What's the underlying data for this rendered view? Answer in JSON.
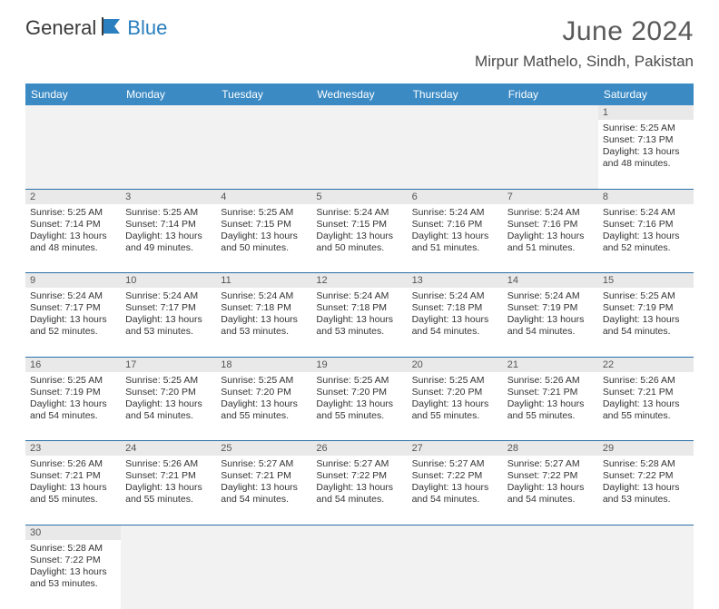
{
  "brand": {
    "part1": "General",
    "part2": "Blue"
  },
  "title": "June 2024",
  "location": "Mirpur Mathelo, Sindh, Pakistan",
  "colors": {
    "header_bg": "#3b8ac4",
    "header_text": "#ffffff",
    "rule": "#2a6fa8",
    "daynum_bg": "#e9e9e9",
    "brand_accent": "#2a7fbf"
  },
  "day_headers": [
    "Sunday",
    "Monday",
    "Tuesday",
    "Wednesday",
    "Thursday",
    "Friday",
    "Saturday"
  ],
  "weeks": [
    [
      null,
      null,
      null,
      null,
      null,
      null,
      {
        "n": "1",
        "sr": "Sunrise: 5:25 AM",
        "ss": "Sunset: 7:13 PM",
        "d1": "Daylight: 13 hours",
        "d2": "and 48 minutes."
      }
    ],
    [
      {
        "n": "2",
        "sr": "Sunrise: 5:25 AM",
        "ss": "Sunset: 7:14 PM",
        "d1": "Daylight: 13 hours",
        "d2": "and 48 minutes."
      },
      {
        "n": "3",
        "sr": "Sunrise: 5:25 AM",
        "ss": "Sunset: 7:14 PM",
        "d1": "Daylight: 13 hours",
        "d2": "and 49 minutes."
      },
      {
        "n": "4",
        "sr": "Sunrise: 5:25 AM",
        "ss": "Sunset: 7:15 PM",
        "d1": "Daylight: 13 hours",
        "d2": "and 50 minutes."
      },
      {
        "n": "5",
        "sr": "Sunrise: 5:24 AM",
        "ss": "Sunset: 7:15 PM",
        "d1": "Daylight: 13 hours",
        "d2": "and 50 minutes."
      },
      {
        "n": "6",
        "sr": "Sunrise: 5:24 AM",
        "ss": "Sunset: 7:16 PM",
        "d1": "Daylight: 13 hours",
        "d2": "and 51 minutes."
      },
      {
        "n": "7",
        "sr": "Sunrise: 5:24 AM",
        "ss": "Sunset: 7:16 PM",
        "d1": "Daylight: 13 hours",
        "d2": "and 51 minutes."
      },
      {
        "n": "8",
        "sr": "Sunrise: 5:24 AM",
        "ss": "Sunset: 7:16 PM",
        "d1": "Daylight: 13 hours",
        "d2": "and 52 minutes."
      }
    ],
    [
      {
        "n": "9",
        "sr": "Sunrise: 5:24 AM",
        "ss": "Sunset: 7:17 PM",
        "d1": "Daylight: 13 hours",
        "d2": "and 52 minutes."
      },
      {
        "n": "10",
        "sr": "Sunrise: 5:24 AM",
        "ss": "Sunset: 7:17 PM",
        "d1": "Daylight: 13 hours",
        "d2": "and 53 minutes."
      },
      {
        "n": "11",
        "sr": "Sunrise: 5:24 AM",
        "ss": "Sunset: 7:18 PM",
        "d1": "Daylight: 13 hours",
        "d2": "and 53 minutes."
      },
      {
        "n": "12",
        "sr": "Sunrise: 5:24 AM",
        "ss": "Sunset: 7:18 PM",
        "d1": "Daylight: 13 hours",
        "d2": "and 53 minutes."
      },
      {
        "n": "13",
        "sr": "Sunrise: 5:24 AM",
        "ss": "Sunset: 7:18 PM",
        "d1": "Daylight: 13 hours",
        "d2": "and 54 minutes."
      },
      {
        "n": "14",
        "sr": "Sunrise: 5:24 AM",
        "ss": "Sunset: 7:19 PM",
        "d1": "Daylight: 13 hours",
        "d2": "and 54 minutes."
      },
      {
        "n": "15",
        "sr": "Sunrise: 5:25 AM",
        "ss": "Sunset: 7:19 PM",
        "d1": "Daylight: 13 hours",
        "d2": "and 54 minutes."
      }
    ],
    [
      {
        "n": "16",
        "sr": "Sunrise: 5:25 AM",
        "ss": "Sunset: 7:19 PM",
        "d1": "Daylight: 13 hours",
        "d2": "and 54 minutes."
      },
      {
        "n": "17",
        "sr": "Sunrise: 5:25 AM",
        "ss": "Sunset: 7:20 PM",
        "d1": "Daylight: 13 hours",
        "d2": "and 54 minutes."
      },
      {
        "n": "18",
        "sr": "Sunrise: 5:25 AM",
        "ss": "Sunset: 7:20 PM",
        "d1": "Daylight: 13 hours",
        "d2": "and 55 minutes."
      },
      {
        "n": "19",
        "sr": "Sunrise: 5:25 AM",
        "ss": "Sunset: 7:20 PM",
        "d1": "Daylight: 13 hours",
        "d2": "and 55 minutes."
      },
      {
        "n": "20",
        "sr": "Sunrise: 5:25 AM",
        "ss": "Sunset: 7:20 PM",
        "d1": "Daylight: 13 hours",
        "d2": "and 55 minutes."
      },
      {
        "n": "21",
        "sr": "Sunrise: 5:26 AM",
        "ss": "Sunset: 7:21 PM",
        "d1": "Daylight: 13 hours",
        "d2": "and 55 minutes."
      },
      {
        "n": "22",
        "sr": "Sunrise: 5:26 AM",
        "ss": "Sunset: 7:21 PM",
        "d1": "Daylight: 13 hours",
        "d2": "and 55 minutes."
      }
    ],
    [
      {
        "n": "23",
        "sr": "Sunrise: 5:26 AM",
        "ss": "Sunset: 7:21 PM",
        "d1": "Daylight: 13 hours",
        "d2": "and 55 minutes."
      },
      {
        "n": "24",
        "sr": "Sunrise: 5:26 AM",
        "ss": "Sunset: 7:21 PM",
        "d1": "Daylight: 13 hours",
        "d2": "and 55 minutes."
      },
      {
        "n": "25",
        "sr": "Sunrise: 5:27 AM",
        "ss": "Sunset: 7:21 PM",
        "d1": "Daylight: 13 hours",
        "d2": "and 54 minutes."
      },
      {
        "n": "26",
        "sr": "Sunrise: 5:27 AM",
        "ss": "Sunset: 7:22 PM",
        "d1": "Daylight: 13 hours",
        "d2": "and 54 minutes."
      },
      {
        "n": "27",
        "sr": "Sunrise: 5:27 AM",
        "ss": "Sunset: 7:22 PM",
        "d1": "Daylight: 13 hours",
        "d2": "and 54 minutes."
      },
      {
        "n": "28",
        "sr": "Sunrise: 5:27 AM",
        "ss": "Sunset: 7:22 PM",
        "d1": "Daylight: 13 hours",
        "d2": "and 54 minutes."
      },
      {
        "n": "29",
        "sr": "Sunrise: 5:28 AM",
        "ss": "Sunset: 7:22 PM",
        "d1": "Daylight: 13 hours",
        "d2": "and 53 minutes."
      }
    ],
    [
      {
        "n": "30",
        "sr": "Sunrise: 5:28 AM",
        "ss": "Sunset: 7:22 PM",
        "d1": "Daylight: 13 hours",
        "d2": "and 53 minutes."
      },
      null,
      null,
      null,
      null,
      null,
      null
    ]
  ]
}
